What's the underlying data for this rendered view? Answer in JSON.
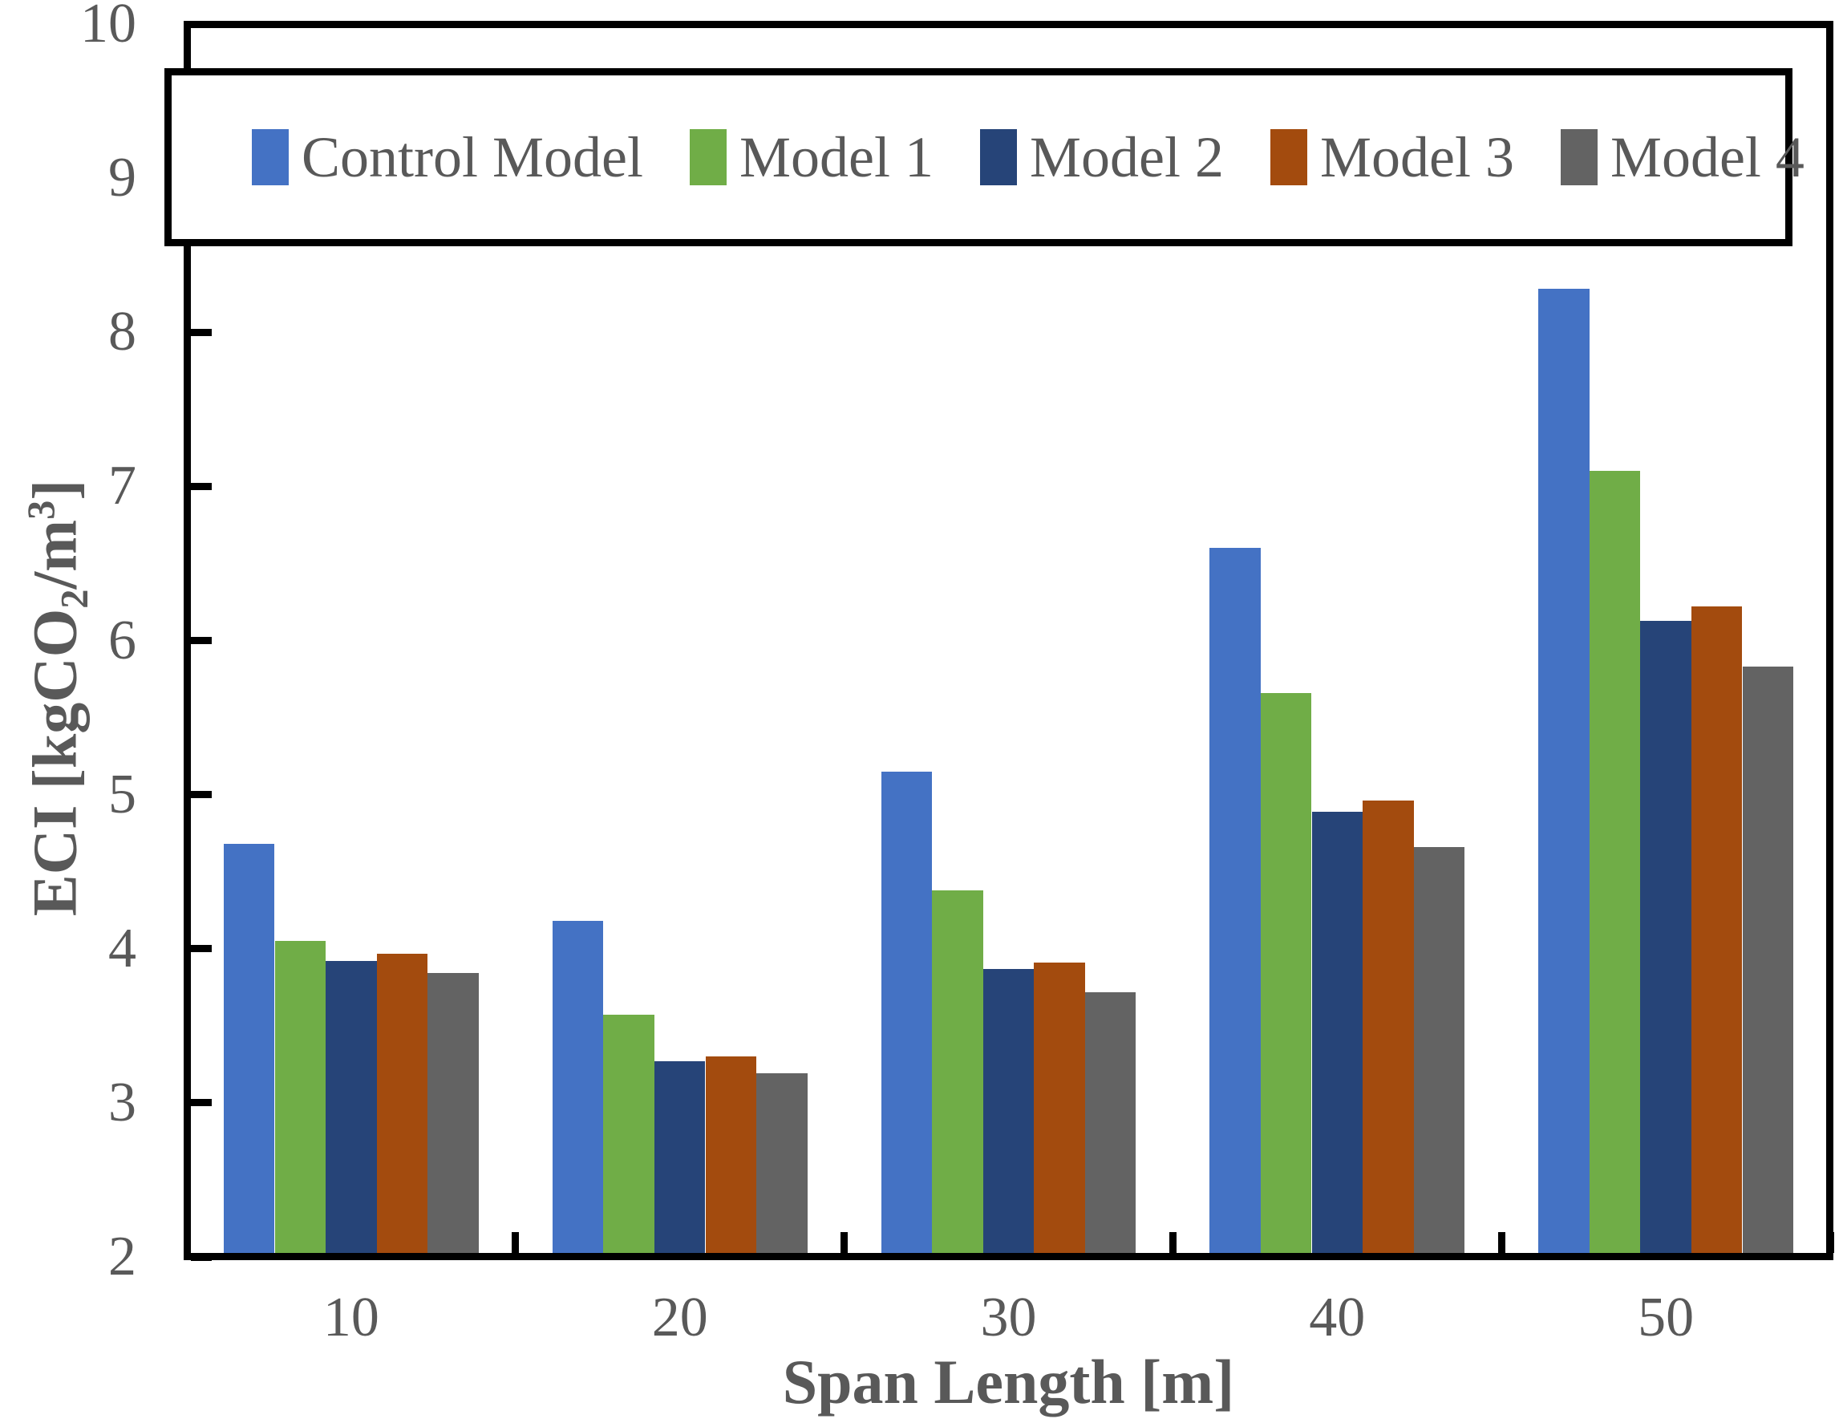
{
  "chart_data": {
    "type": "bar",
    "title": "",
    "xlabel": "Span Length [m]",
    "ylabel": {
      "pre": "ECI [kgCO",
      "sub": "2",
      "mid": "/m",
      "sup": "3",
      "post": "]"
    },
    "categories": [
      "10",
      "20",
      "30",
      "40",
      "50"
    ],
    "yticks": [
      "2",
      "3",
      "4",
      "5",
      "6",
      "7",
      "8",
      "9",
      "10"
    ],
    "ylim": [
      2,
      10
    ],
    "grid": false,
    "legend_position": "top-inside-box",
    "axis_color": "#000000",
    "text_color": "#595959",
    "series": [
      {
        "name": "Control Model",
        "color": "#4472C4",
        "values": [
          4.68,
          4.18,
          5.15,
          6.6,
          8.28
        ]
      },
      {
        "name": "Model 1",
        "color": "#70AD47",
        "values": [
          4.05,
          3.57,
          4.38,
          5.66,
          7.1
        ]
      },
      {
        "name": "Model 2",
        "color": "#264478",
        "values": [
          3.92,
          3.27,
          3.87,
          4.89,
          6.13
        ]
      },
      {
        "name": "Model 3",
        "color": "#A34B0E",
        "values": [
          3.97,
          3.3,
          3.91,
          4.96,
          6.22
        ]
      },
      {
        "name": "Model 4",
        "color": "#636363",
        "values": [
          3.84,
          3.19,
          3.72,
          4.66,
          5.83
        ]
      }
    ]
  }
}
